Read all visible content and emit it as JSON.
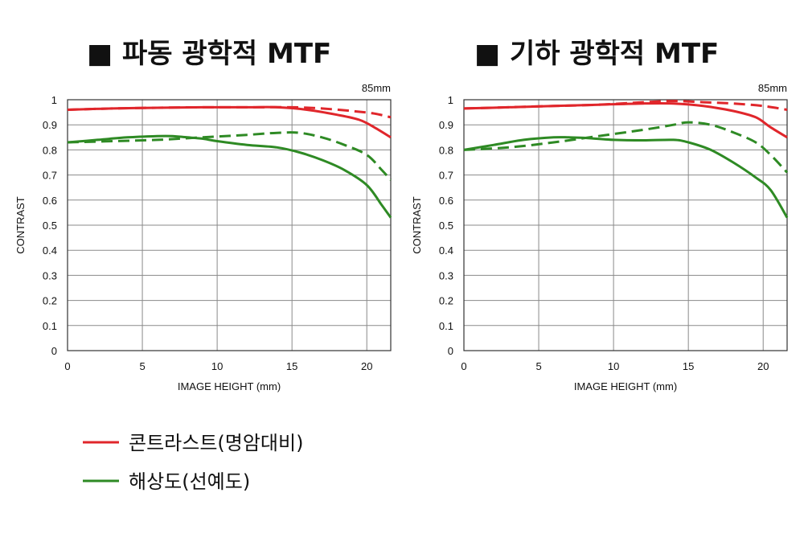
{
  "chart_data": [
    {
      "type": "line",
      "title": "■ 파동 광학적 MTF",
      "focal_label": "85mm",
      "xlabel": "IMAGE HEIGHT (mm)",
      "ylabel": "CONTRAST",
      "xlim": [
        0,
        21.6
      ],
      "ylim": [
        0,
        1
      ],
      "xticks": [
        "0",
        "5",
        "10",
        "15",
        "20"
      ],
      "yticks": [
        "0",
        "0.1",
        "0.2",
        "0.3",
        "0.4",
        "0.5",
        "0.6",
        "0.7",
        "0.8",
        "0.9",
        "1"
      ],
      "grid": true,
      "series": [
        {
          "name": "콘트라스트(명암대비)",
          "color": "#e0262b",
          "dash": false,
          "x": [
            0,
            3,
            6,
            9,
            12,
            14,
            16,
            18,
            19.5,
            20.5,
            21.6
          ],
          "y": [
            0.96,
            0.965,
            0.968,
            0.97,
            0.97,
            0.97,
            0.96,
            0.94,
            0.92,
            0.89,
            0.85
          ]
        },
        {
          "name": "콘트라스트(명암대비)",
          "color": "#e0262b",
          "dash": true,
          "x": [
            0,
            3,
            6,
            9,
            12,
            15,
            17,
            19,
            20.5,
            21.6
          ],
          "y": [
            0.96,
            0.965,
            0.968,
            0.97,
            0.97,
            0.97,
            0.965,
            0.955,
            0.945,
            0.93
          ]
        },
        {
          "name": "해상도(선예도)",
          "color": "#2e8a24",
          "dash": false,
          "x": [
            0,
            2,
            4,
            6,
            7,
            8,
            9,
            10,
            12,
            14,
            15.5,
            17,
            18.5,
            20,
            21,
            21.6
          ],
          "y": [
            0.83,
            0.84,
            0.85,
            0.855,
            0.855,
            0.85,
            0.845,
            0.835,
            0.82,
            0.81,
            0.79,
            0.76,
            0.72,
            0.66,
            0.58,
            0.53
          ]
        },
        {
          "name": "해상도(선예도)",
          "color": "#2e8a24",
          "dash": true,
          "x": [
            0,
            3,
            6,
            9,
            12,
            14,
            15.5,
            17,
            18.5,
            20,
            21,
            21.6
          ],
          "y": [
            0.83,
            0.835,
            0.84,
            0.85,
            0.86,
            0.868,
            0.868,
            0.85,
            0.82,
            0.78,
            0.72,
            0.68
          ]
        }
      ]
    },
    {
      "type": "line",
      "title": "■ 기하 광학적 MTF",
      "focal_label": "85mm",
      "xlabel": "IMAGE HEIGHT (mm)",
      "ylabel": "CONTRAST",
      "xlim": [
        0,
        21.6
      ],
      "ylim": [
        0,
        1
      ],
      "xticks": [
        "0",
        "5",
        "10",
        "15",
        "20"
      ],
      "yticks": [
        "0",
        "0.1",
        "0.2",
        "0.3",
        "0.4",
        "0.5",
        "0.6",
        "0.7",
        "0.8",
        "0.9",
        "1"
      ],
      "grid": true,
      "series": [
        {
          "name": "콘트라스트(명암대비)",
          "color": "#e0262b",
          "dash": false,
          "x": [
            0,
            3,
            6,
            9,
            12,
            14,
            16,
            18,
            19.5,
            20.5,
            21.6
          ],
          "y": [
            0.965,
            0.97,
            0.975,
            0.98,
            0.985,
            0.985,
            0.975,
            0.955,
            0.93,
            0.89,
            0.85
          ]
        },
        {
          "name": "콘트라스트(명암대비)",
          "color": "#e0262b",
          "dash": true,
          "x": [
            0,
            3,
            6,
            9,
            12,
            14,
            16,
            18,
            20,
            21.6
          ],
          "y": [
            0.965,
            0.97,
            0.975,
            0.98,
            0.99,
            0.995,
            0.99,
            0.985,
            0.975,
            0.96
          ]
        },
        {
          "name": "해상도(선예도)",
          "color": "#2e8a24",
          "dash": false,
          "x": [
            0,
            2,
            4,
            6,
            7,
            8,
            10,
            12,
            14,
            15,
            16.5,
            18,
            19.5,
            20.5,
            21.6
          ],
          "y": [
            0.8,
            0.82,
            0.84,
            0.85,
            0.85,
            0.848,
            0.84,
            0.838,
            0.84,
            0.83,
            0.8,
            0.75,
            0.69,
            0.64,
            0.53
          ]
        },
        {
          "name": "해상도(선예도)",
          "color": "#2e8a24",
          "dash": true,
          "x": [
            0,
            3,
            6,
            9,
            12,
            14,
            15,
            16.5,
            18,
            19.5,
            20.5,
            21.6
          ],
          "y": [
            0.8,
            0.81,
            0.83,
            0.855,
            0.88,
            0.9,
            0.91,
            0.9,
            0.87,
            0.83,
            0.78,
            0.71
          ]
        }
      ]
    }
  ],
  "legend": [
    {
      "label": "콘트라스트(명암대비)",
      "color": "#e0262b"
    },
    {
      "label": "해상도(선예도)",
      "color": "#2e8a24"
    }
  ]
}
